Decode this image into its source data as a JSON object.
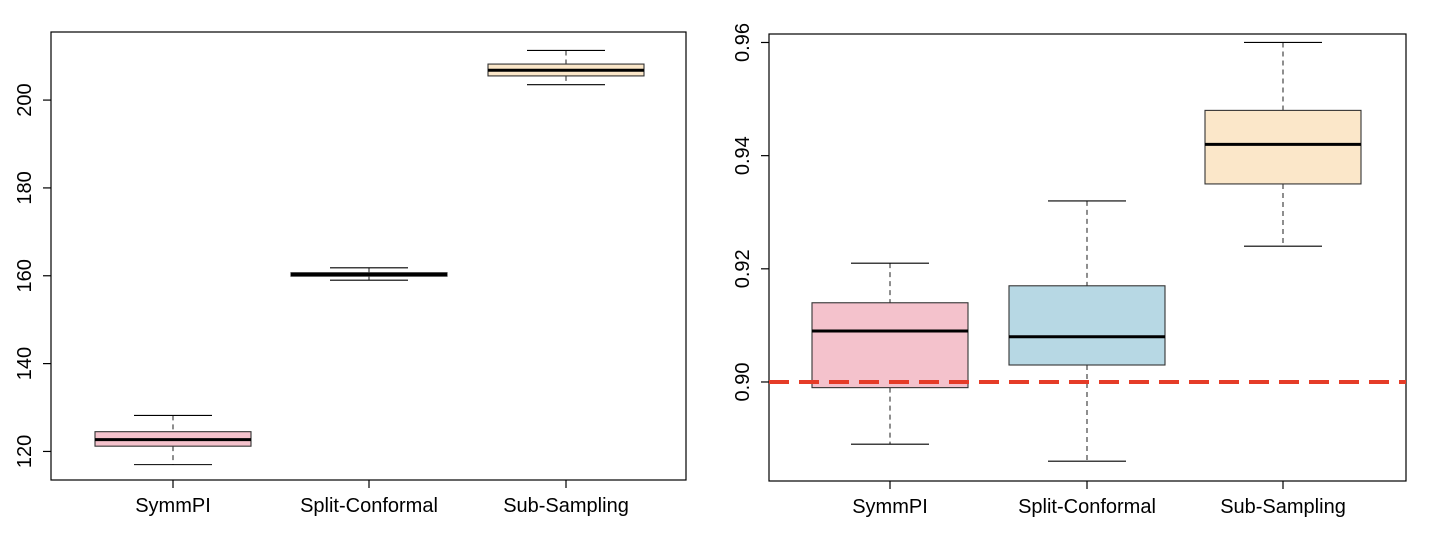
{
  "chart_data": [
    {
      "type": "box",
      "title": "",
      "xlabel": "",
      "ylabel": "",
      "categories": [
        "SymmPI",
        "Split-Conformal",
        "Sub-Sampling"
      ],
      "ylim": [
        113.5,
        215.5
      ],
      "yticks": [
        120,
        140,
        160,
        180,
        200
      ],
      "ytick_labels": [
        "120",
        "140",
        "160",
        "180",
        "200"
      ],
      "boxes": [
        {
          "category": "SymmPI",
          "whisker_low": 117,
          "q1": 121.2,
          "median": 122.7,
          "q3": 124.5,
          "whisker_high": 128.2,
          "fill": "#f4c2cc"
        },
        {
          "category": "Split-Conformal",
          "whisker_low": 159,
          "q1": 159.9,
          "median": 160.3,
          "q3": 160.7,
          "whisker_high": 161.8,
          "fill": "#b7d8e4"
        },
        {
          "category": "Sub-Sampling",
          "whisker_low": 203.5,
          "q1": 205.5,
          "median": 206.8,
          "q3": 208.2,
          "whisker_high": 211.3,
          "fill": "#fbe7c9"
        }
      ]
    },
    {
      "type": "box",
      "title": "",
      "xlabel": "",
      "ylabel": "",
      "categories": [
        "SymmPI",
        "Split-Conformal",
        "Sub-Sampling"
      ],
      "ylim": [
        0.8825,
        0.9615
      ],
      "yticks": [
        0.9,
        0.92,
        0.94,
        0.96
      ],
      "ytick_labels": [
        "0.90",
        "0.92",
        "0.94",
        "0.96"
      ],
      "reference_line": {
        "y": 0.9,
        "color": "#e53c28",
        "style": "dashed"
      },
      "boxes": [
        {
          "category": "SymmPI",
          "whisker_low": 0.889,
          "q1": 0.899,
          "median": 0.909,
          "q3": 0.914,
          "whisker_high": 0.921,
          "fill": "#f4c2cc"
        },
        {
          "category": "Split-Conformal",
          "whisker_low": 0.886,
          "q1": 0.903,
          "median": 0.908,
          "q3": 0.917,
          "whisker_high": 0.932,
          "fill": "#b7d8e4"
        },
        {
          "category": "Sub-Sampling",
          "whisker_low": 0.924,
          "q1": 0.935,
          "median": 0.942,
          "q3": 0.948,
          "whisker_high": 0.96,
          "fill": "#fbe7c9"
        }
      ]
    }
  ]
}
